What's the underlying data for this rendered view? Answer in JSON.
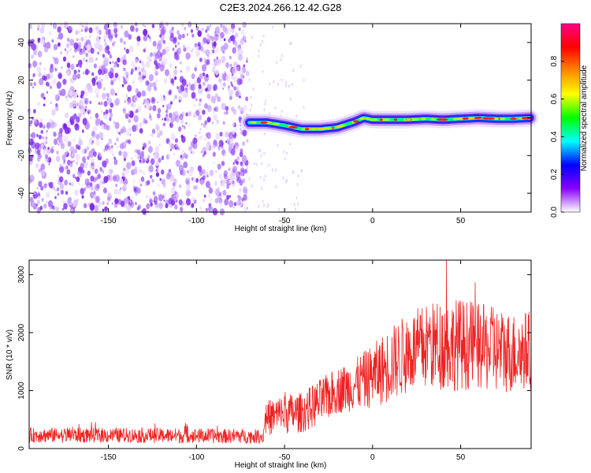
{
  "title": "C2E3.2024.266.12.42.G28",
  "chart_data": [
    {
      "type": "heatmap",
      "xlabel": "Height of straight line (km)",
      "ylabel": "Frequency (Hz)",
      "xlim": [
        -195,
        90
      ],
      "ylim": [
        -50,
        50
      ],
      "x_ticks": [
        -150,
        -100,
        -50,
        0,
        50
      ],
      "y_ticks": [
        -40,
        -20,
        0,
        20,
        40
      ],
      "colorbar": {
        "label": "Normalized spectral amplitude",
        "range": [
          0,
          1
        ],
        "ticks": [
          0.0,
          0.2,
          0.4,
          0.6,
          0.8
        ],
        "colors": [
          "#ffffff",
          "#8800ff",
          "#0000ff",
          "#00ffff",
          "#00ff00",
          "#ffff00",
          "#ff8800",
          "#ff0000",
          "#ff0088"
        ]
      },
      "noise_region_x": [
        -195,
        -70
      ],
      "signal_line": {
        "x": [
          -70,
          -60,
          -50,
          -40,
          -30,
          -20,
          -10,
          -5,
          0,
          10,
          20,
          30,
          40,
          50,
          60,
          70,
          80,
          90
        ],
        "y": [
          -2.5,
          -2.5,
          -4,
          -6,
          -6,
          -5,
          -2,
          0,
          -1,
          -1,
          -1,
          -0.5,
          -1,
          -0.5,
          0,
          -0.5,
          -0.5,
          0
        ]
      },
      "grid": false
    },
    {
      "type": "line",
      "xlabel": "Height of straight line (km)",
      "ylabel": "SNR (10 * v/v)",
      "xlim": [
        -195,
        90
      ],
      "ylim": [
        0,
        3250
      ],
      "x_ticks": [
        -150,
        -100,
        -50,
        0,
        50
      ],
      "y_ticks": [
        0,
        1000,
        2000,
        3000
      ],
      "series_color": "#ee2222",
      "envelope": {
        "x": [
          -195,
          -150,
          -100,
          -62,
          -61,
          -50,
          -40,
          -30,
          -20,
          -10,
          0,
          10,
          20,
          30,
          40,
          50,
          60,
          70,
          80,
          90
        ],
        "mean": [
          230,
          230,
          220,
          210,
          520,
          600,
          620,
          800,
          1000,
          1100,
          1250,
          1450,
          1650,
          1750,
          1800,
          1800,
          1750,
          1700,
          1650,
          1700
        ],
        "amplitude": [
          130,
          130,
          130,
          120,
          300,
          350,
          350,
          400,
          400,
          450,
          550,
          650,
          700,
          750,
          800,
          800,
          750,
          750,
          700,
          700
        ]
      },
      "peak": {
        "x": 42,
        "y": 3250
      },
      "grid": false
    }
  ]
}
